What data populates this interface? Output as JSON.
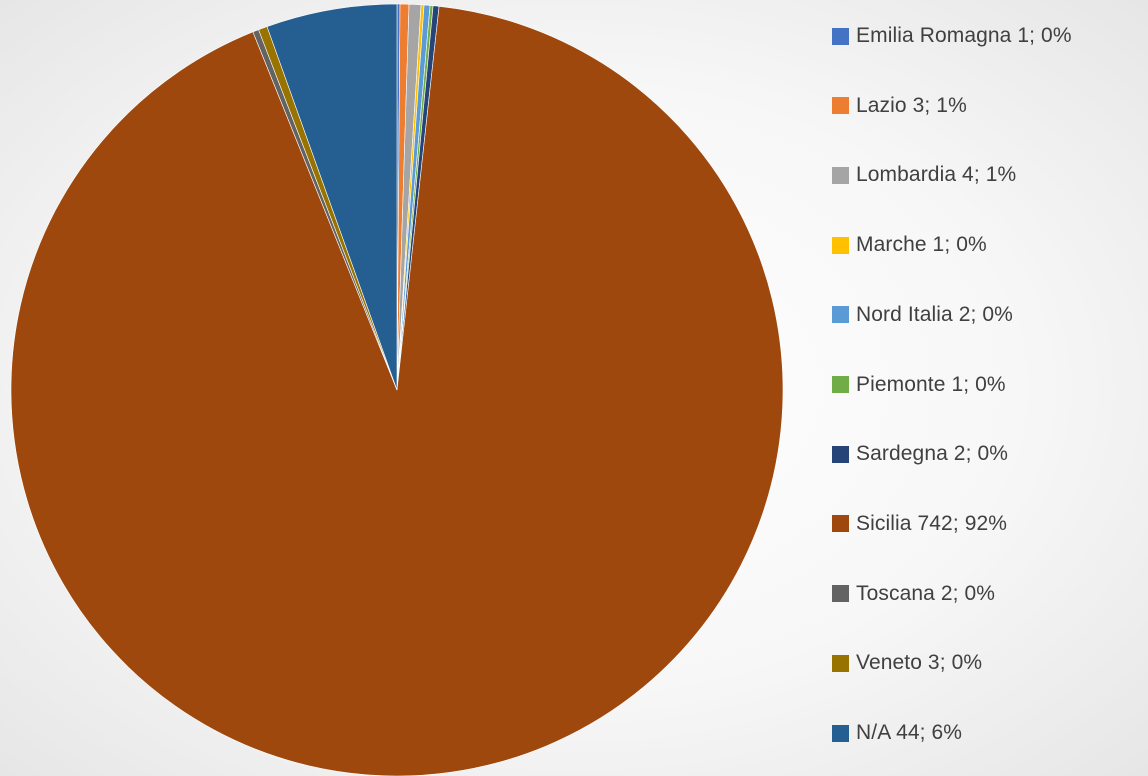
{
  "chart_data": {
    "type": "pie",
    "title": "",
    "legend_position": "right",
    "slices": [
      {
        "label": "Emilia Romagna",
        "value": 1,
        "percent": "0%",
        "legend_text": "Emilia Romagna 1; 0%",
        "color": "#4472C4"
      },
      {
        "label": "Lazio",
        "value": 3,
        "percent": "1%",
        "legend_text": "Lazio 3; 1%",
        "color": "#ED7D31"
      },
      {
        "label": "Lombardia",
        "value": 4,
        "percent": "1%",
        "legend_text": "Lombardia 4; 1%",
        "color": "#A5A5A5"
      },
      {
        "label": "Marche",
        "value": 1,
        "percent": "0%",
        "legend_text": "Marche 1; 0%",
        "color": "#FFC000"
      },
      {
        "label": "Nord Italia",
        "value": 2,
        "percent": "0%",
        "legend_text": "Nord Italia 2; 0%",
        "color": "#5B9BD5"
      },
      {
        "label": "Piemonte",
        "value": 1,
        "percent": "0%",
        "legend_text": "Piemonte 1; 0%",
        "color": "#70AD47"
      },
      {
        "label": "Sardegna",
        "value": 2,
        "percent": "0%",
        "legend_text": "Sardegna 2; 0%",
        "color": "#264478"
      },
      {
        "label": "Sicilia",
        "value": 742,
        "percent": "92%",
        "legend_text": "Sicilia 742; 92%",
        "color": "#9E480E"
      },
      {
        "label": "Toscana",
        "value": 2,
        "percent": "0%",
        "legend_text": "Toscana 2; 0%",
        "color": "#636363"
      },
      {
        "label": "Veneto",
        "value": 3,
        "percent": "0%",
        "legend_text": "Veneto 3; 0%",
        "color": "#997300"
      },
      {
        "label": "N/A",
        "value": 44,
        "percent": "6%",
        "legend_text": "N/A 44; 6%",
        "color": "#255E91"
      }
    ]
  }
}
